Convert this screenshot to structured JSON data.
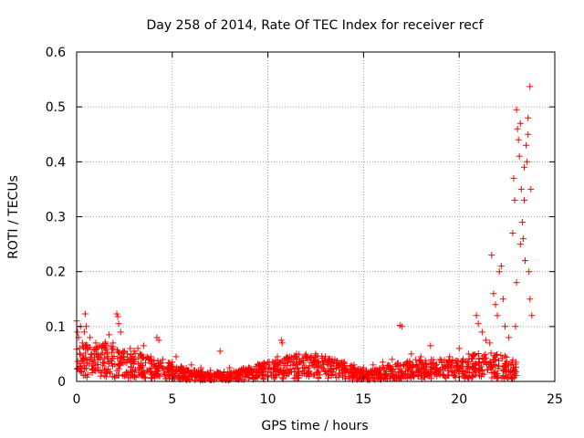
{
  "chart_data": {
    "type": "scatter",
    "title": "Day 258 of 2014, Rate Of TEC Index for receiver recf",
    "xlabel": "GPS time / hours",
    "ylabel": "ROTI / TECUs",
    "xlim": [
      0,
      25
    ],
    "ylim": [
      0,
      0.6
    ],
    "grid": true,
    "marker": "+",
    "color": "#ff0000",
    "xticks": [
      0,
      5,
      10,
      15,
      20,
      25
    ],
    "yticks": [
      0,
      0.1,
      0.2,
      0.3,
      0.4,
      0.5,
      0.6
    ],
    "xtick_labels": [
      "0",
      "5",
      "10",
      "15",
      "20",
      "25"
    ],
    "ytick_labels": [
      "0",
      "0.1",
      "0.2",
      "0.3",
      "0.4",
      "0.5",
      "0.6"
    ],
    "series": [
      {
        "name": "ROTI",
        "points": [
          [
            0.0,
            0.11
          ],
          [
            0.05,
            0.09
          ],
          [
            0.1,
            0.08
          ],
          [
            0.15,
            0.06
          ],
          [
            0.2,
            0.1
          ],
          [
            0.3,
            0.07
          ],
          [
            0.4,
            0.09
          ],
          [
            0.45,
            0.123
          ],
          [
            0.5,
            0.1
          ],
          [
            0.6,
            0.06
          ],
          [
            0.7,
            0.08
          ],
          [
            0.8,
            0.05
          ],
          [
            1.0,
            0.07
          ],
          [
            1.2,
            0.065
          ],
          [
            1.5,
            0.06
          ],
          [
            1.7,
            0.085
          ],
          [
            1.9,
            0.07
          ],
          [
            2.1,
            0.123
          ],
          [
            2.15,
            0.118
          ],
          [
            2.2,
            0.105
          ],
          [
            2.3,
            0.09
          ],
          [
            2.5,
            0.055
          ],
          [
            2.8,
            0.06
          ],
          [
            3.0,
            0.055
          ],
          [
            3.2,
            0.06
          ],
          [
            3.5,
            0.065
          ],
          [
            3.8,
            0.04
          ],
          [
            4.2,
            0.08
          ],
          [
            4.3,
            0.075
          ],
          [
            4.5,
            0.04
          ],
          [
            5.0,
            0.035
          ],
          [
            5.2,
            0.045
          ],
          [
            5.5,
            0.025
          ],
          [
            6.0,
            0.03
          ],
          [
            6.5,
            0.025
          ],
          [
            7.0,
            0.02
          ],
          [
            7.5,
            0.055
          ],
          [
            8.0,
            0.025
          ],
          [
            8.5,
            0.02
          ],
          [
            9.0,
            0.025
          ],
          [
            9.5,
            0.03
          ],
          [
            10.0,
            0.035
          ],
          [
            10.5,
            0.045
          ],
          [
            10.7,
            0.075
          ],
          [
            10.75,
            0.07
          ],
          [
            11.0,
            0.04
          ],
          [
            11.5,
            0.05
          ],
          [
            12.0,
            0.045
          ],
          [
            12.5,
            0.05
          ],
          [
            13.0,
            0.045
          ],
          [
            13.5,
            0.04
          ],
          [
            14.0,
            0.035
          ],
          [
            14.5,
            0.03
          ],
          [
            15.0,
            0.025
          ],
          [
            15.5,
            0.03
          ],
          [
            16.0,
            0.035
          ],
          [
            16.5,
            0.04
          ],
          [
            16.9,
            0.102
          ],
          [
            17.0,
            0.1
          ],
          [
            17.5,
            0.05
          ],
          [
            18.0,
            0.045
          ],
          [
            18.5,
            0.065
          ],
          [
            19.0,
            0.04
          ],
          [
            19.5,
            0.045
          ],
          [
            20.0,
            0.06
          ],
          [
            20.5,
            0.05
          ],
          [
            20.9,
            0.12
          ],
          [
            21.0,
            0.105
          ],
          [
            21.2,
            0.09
          ],
          [
            21.4,
            0.075
          ],
          [
            21.6,
            0.07
          ],
          [
            21.7,
            0.23
          ],
          [
            21.8,
            0.16
          ],
          [
            21.9,
            0.14
          ],
          [
            22.0,
            0.12
          ],
          [
            22.1,
            0.2
          ],
          [
            22.2,
            0.21
          ],
          [
            22.3,
            0.15
          ],
          [
            22.4,
            0.1
          ],
          [
            22.6,
            0.08
          ],
          [
            22.8,
            0.27
          ],
          [
            22.85,
            0.37
          ],
          [
            22.9,
            0.33
          ],
          [
            23.0,
            0.495
          ],
          [
            23.05,
            0.46
          ],
          [
            23.1,
            0.44
          ],
          [
            23.15,
            0.41
          ],
          [
            23.2,
            0.47
          ],
          [
            23.25,
            0.35
          ],
          [
            23.3,
            0.29
          ],
          [
            23.35,
            0.26
          ],
          [
            23.4,
            0.39
          ],
          [
            23.45,
            0.22
          ],
          [
            23.5,
            0.43
          ],
          [
            23.55,
            0.4
          ],
          [
            23.6,
            0.48
          ],
          [
            23.65,
            0.2
          ],
          [
            23.7,
            0.15
          ],
          [
            23.75,
            0.35
          ],
          [
            23.8,
            0.12
          ],
          [
            23.7,
            0.537
          ],
          [
            23.6,
            0.45
          ],
          [
            23.4,
            0.33
          ],
          [
            23.2,
            0.25
          ],
          [
            23.0,
            0.18
          ],
          [
            22.95,
            0.1
          ]
        ],
        "baseline_band": [
          [
            0.0,
            0.035
          ],
          [
            0.5,
            0.04
          ],
          [
            1.0,
            0.035
          ],
          [
            1.5,
            0.04
          ],
          [
            2.0,
            0.035
          ],
          [
            2.5,
            0.03
          ],
          [
            3.0,
            0.03
          ],
          [
            3.5,
            0.028
          ],
          [
            4.0,
            0.025
          ],
          [
            4.5,
            0.022
          ],
          [
            5.0,
            0.018
          ],
          [
            5.5,
            0.015
          ],
          [
            6.0,
            0.012
          ],
          [
            6.5,
            0.01
          ],
          [
            7.0,
            0.01
          ],
          [
            7.5,
            0.01
          ],
          [
            8.0,
            0.01
          ],
          [
            8.5,
            0.012
          ],
          [
            9.0,
            0.015
          ],
          [
            9.5,
            0.018
          ],
          [
            10.0,
            0.02
          ],
          [
            10.5,
            0.022
          ],
          [
            11.0,
            0.025
          ],
          [
            11.5,
            0.028
          ],
          [
            12.0,
            0.028
          ],
          [
            12.5,
            0.027
          ],
          [
            13.0,
            0.025
          ],
          [
            13.5,
            0.022
          ],
          [
            14.0,
            0.02
          ],
          [
            14.5,
            0.015
          ],
          [
            15.0,
            0.012
          ],
          [
            15.5,
            0.012
          ],
          [
            16.0,
            0.015
          ],
          [
            16.5,
            0.018
          ],
          [
            17.0,
            0.02
          ],
          [
            17.5,
            0.022
          ],
          [
            18.0,
            0.022
          ],
          [
            18.5,
            0.022
          ],
          [
            19.0,
            0.022
          ],
          [
            19.5,
            0.022
          ],
          [
            20.0,
            0.022
          ],
          [
            20.5,
            0.025
          ],
          [
            21.0,
            0.03
          ],
          [
            21.5,
            0.03
          ],
          [
            22.0,
            0.03
          ],
          [
            22.5,
            0.025
          ],
          [
            23.0,
            0.02
          ]
        ]
      }
    ]
  }
}
